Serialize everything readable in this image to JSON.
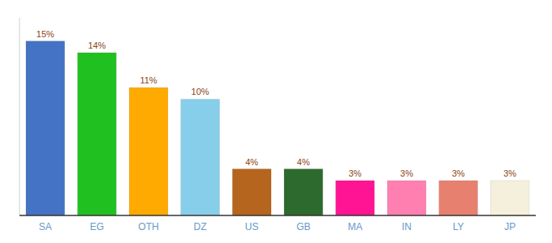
{
  "chart_data": {
    "type": "bar",
    "categories": [
      "SA",
      "EG",
      "OTH",
      "DZ",
      "US",
      "GB",
      "MA",
      "IN",
      "LY",
      "JP"
    ],
    "values": [
      15,
      14,
      11,
      10,
      4,
      4,
      3,
      3,
      3,
      3
    ],
    "value_labels": [
      "15%",
      "14%",
      "11%",
      "10%",
      "4%",
      "4%",
      "3%",
      "3%",
      "3%",
      "3%"
    ],
    "colors": [
      "#4472c4",
      "#21c021",
      "#ffaa00",
      "#87ceeb",
      "#b5651d",
      "#2d6a2d",
      "#ff1493",
      "#ff80b0",
      "#e88070",
      "#f5f0dc"
    ],
    "ylim": [
      0,
      17
    ],
    "grid": false,
    "data_labels": true,
    "tick_labels": "x"
  }
}
